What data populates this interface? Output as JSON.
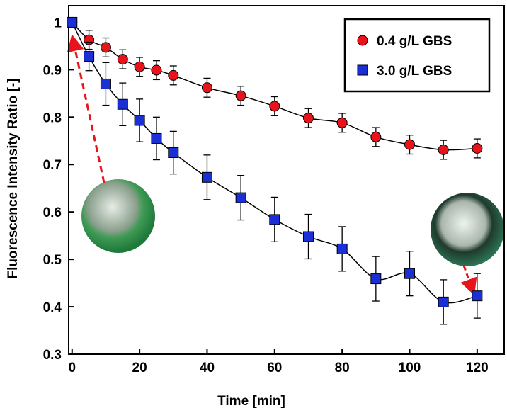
{
  "chart_data": {
    "type": "scatter",
    "x_label": "Time [min]",
    "y_label": "Fluorescence Intensity Ratio [-]",
    "xlim": [
      -1,
      128
    ],
    "ylim": [
      0.3,
      1.035
    ],
    "xticks": [
      0,
      20,
      40,
      60,
      80,
      100,
      120
    ],
    "yticks": [
      0.3,
      0.4,
      0.5,
      0.6,
      0.7,
      0.8,
      0.9,
      1
    ],
    "legend": "upper right",
    "series": [
      {
        "name": "0.4 g/L GBS",
        "color": "#e8131b",
        "marker": "circle",
        "x": [
          0,
          5,
          10,
          15,
          20,
          25,
          30,
          40,
          50,
          60,
          70,
          80,
          90,
          100,
          110,
          120
        ],
        "values": [
          1.0,
          0.963,
          0.947,
          0.922,
          0.906,
          0.899,
          0.888,
          0.862,
          0.845,
          0.823,
          0.798,
          0.788,
          0.758,
          0.742,
          0.731,
          0.734
        ],
        "errors": [
          0,
          0.02,
          0.02,
          0.02,
          0.02,
          0.02,
          0.02,
          0.02,
          0.02,
          0.02,
          0.02,
          0.02,
          0.02,
          0.02,
          0.02,
          0.02
        ]
      },
      {
        "name": "3.0 g/L GBS",
        "color": "#1a2fd6",
        "marker": "square",
        "x": [
          0,
          5,
          10,
          15,
          20,
          25,
          30,
          40,
          50,
          60,
          70,
          80,
          90,
          100,
          110,
          120
        ],
        "values": [
          1.0,
          0.928,
          0.87,
          0.827,
          0.793,
          0.755,
          0.725,
          0.673,
          0.63,
          0.584,
          0.548,
          0.522,
          0.459,
          0.47,
          0.41,
          0.423
        ],
        "errors": [
          0,
          0.03,
          0.045,
          0.045,
          0.045,
          0.045,
          0.045,
          0.047,
          0.047,
          0.047,
          0.047,
          0.047,
          0.047,
          0.047,
          0.047,
          0.047
        ]
      }
    ]
  }
}
